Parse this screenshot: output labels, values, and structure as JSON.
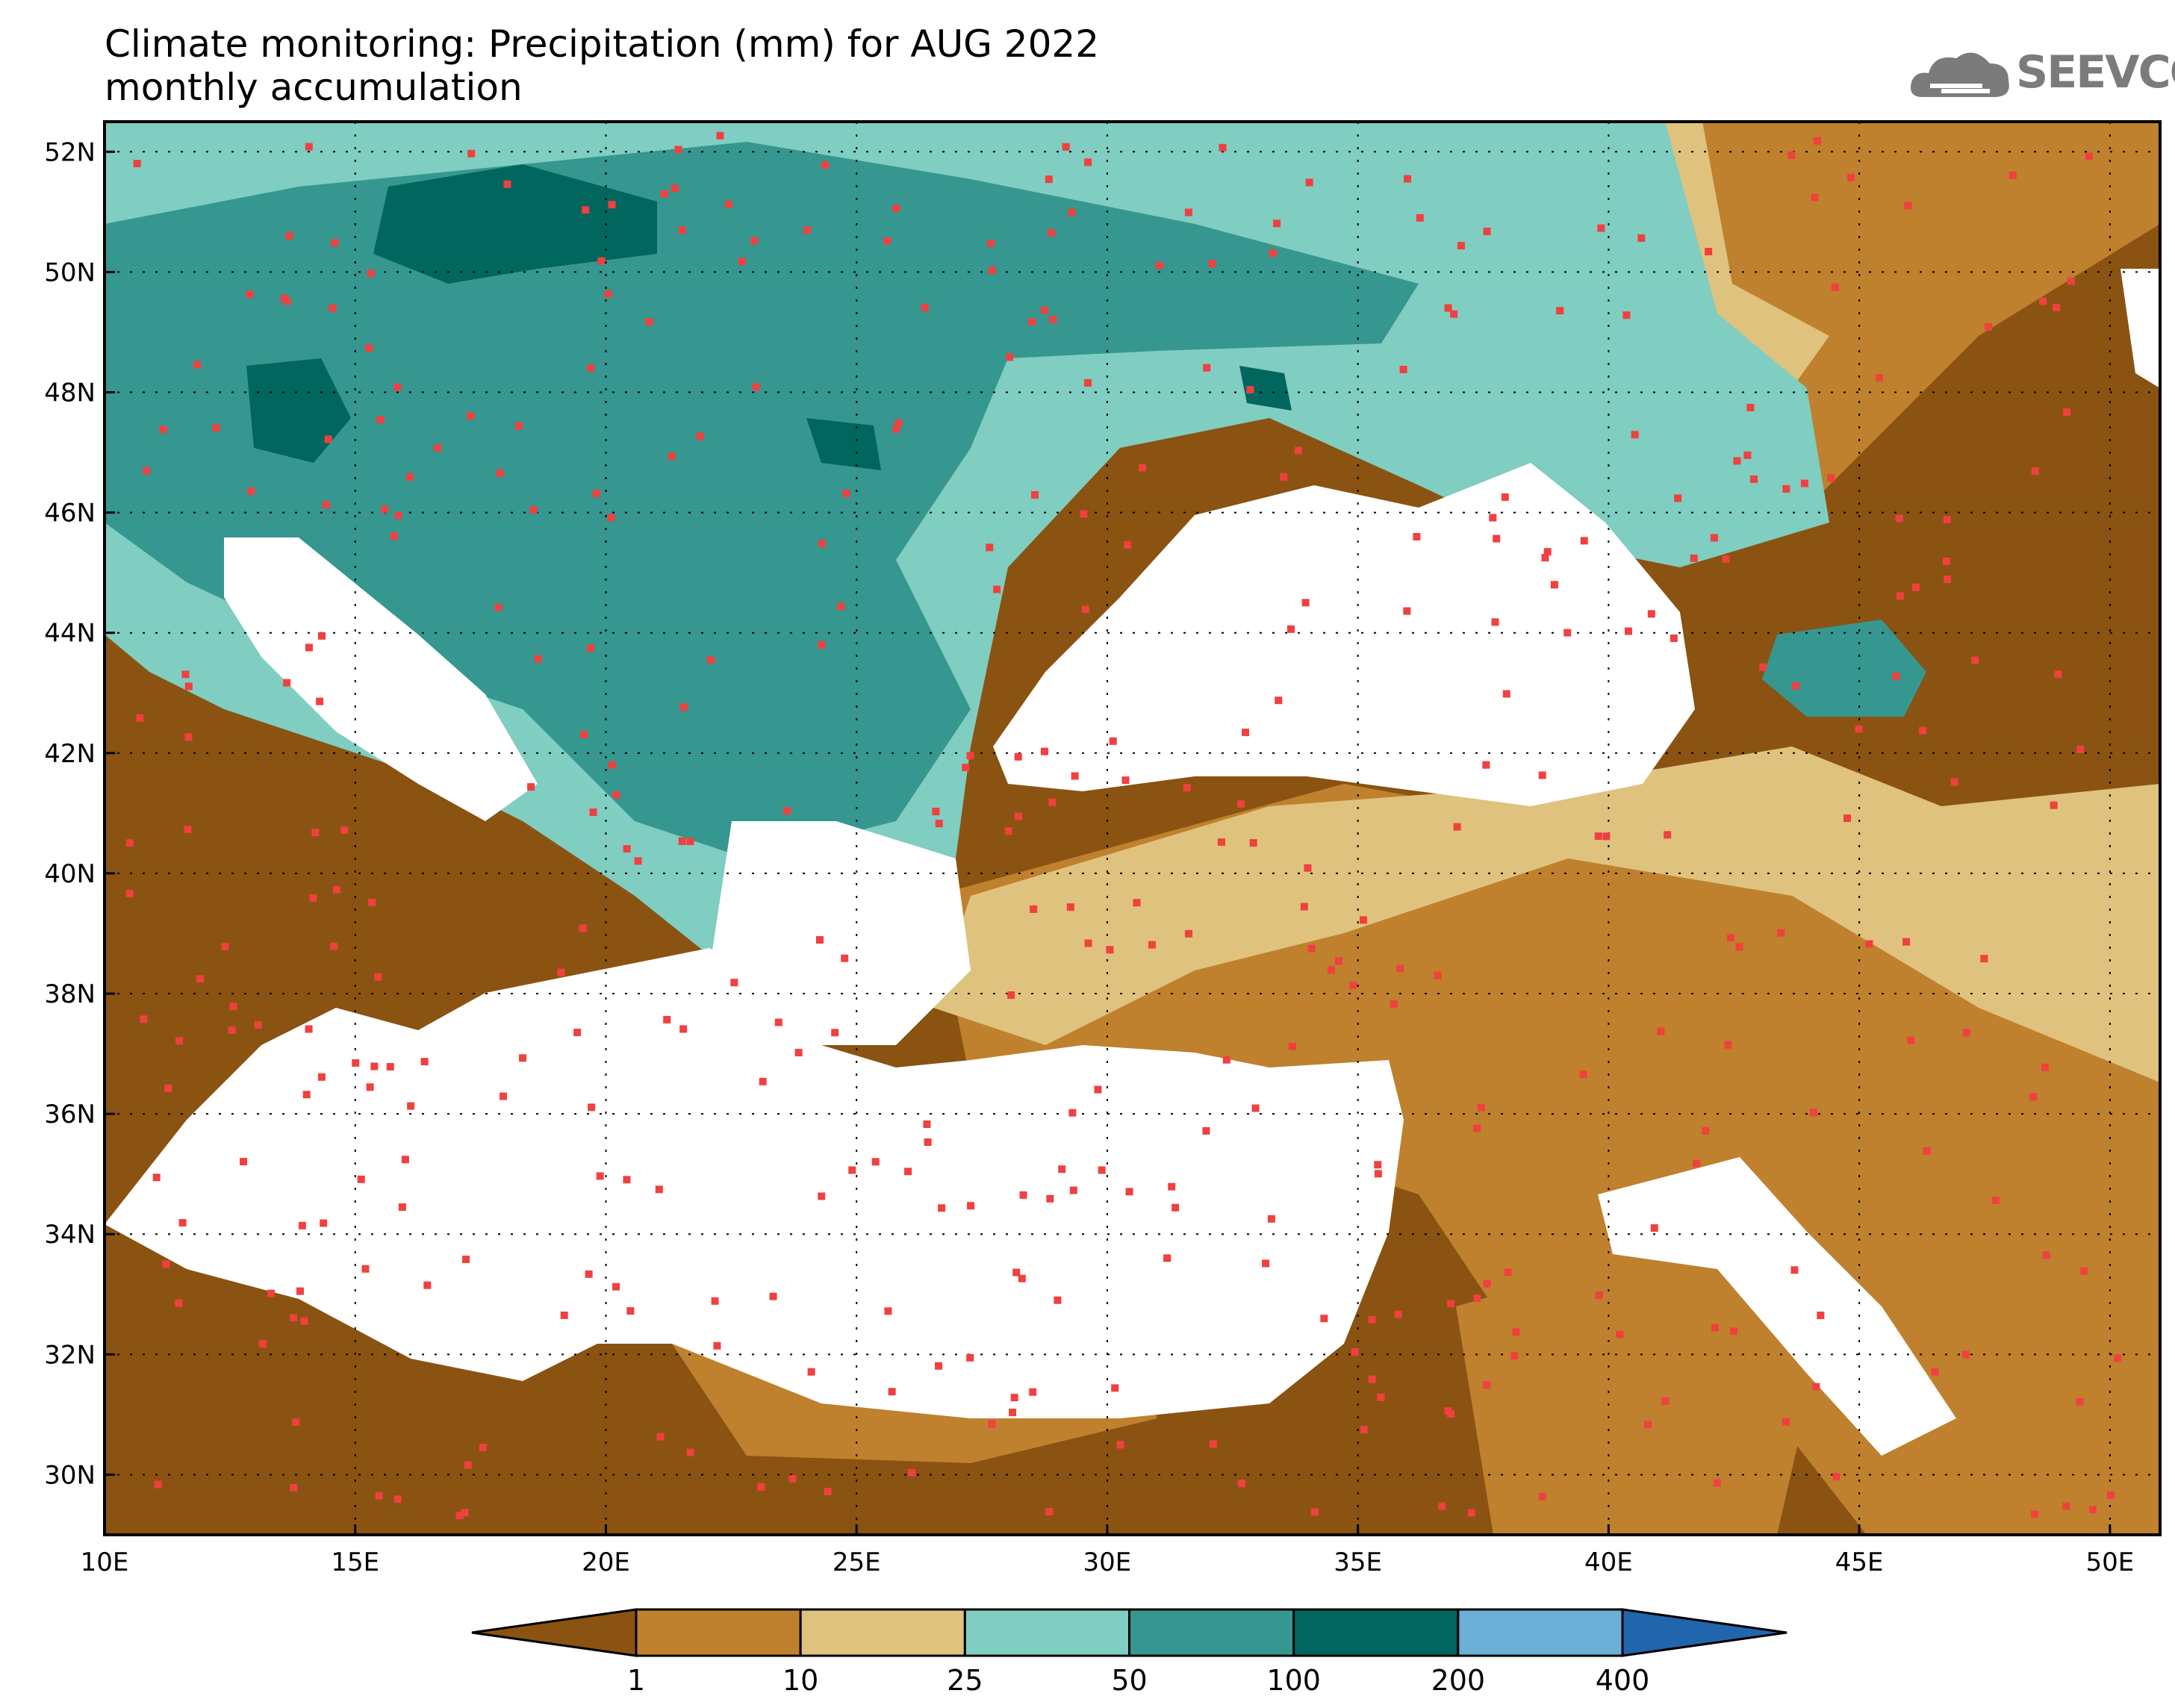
{
  "title": {
    "line1": "Climate monitoring: Precipitation (mm) for AUG 2022",
    "line2": "monthly accumulation"
  },
  "logo": {
    "text": "SEEVCCC",
    "icon": "cloud-logo-icon",
    "color": "#7b7b7b"
  },
  "map": {
    "lon_range": [
      10,
      51
    ],
    "lat_range": [
      29,
      52.5
    ],
    "lon_ticks": [
      "10E",
      "15E",
      "20E",
      "25E",
      "30E",
      "35E",
      "40E",
      "45E",
      "50E"
    ],
    "lat_ticks": [
      "30N",
      "32N",
      "34N",
      "36N",
      "38N",
      "40N",
      "42N",
      "44N",
      "46N",
      "48N",
      "50N",
      "52N"
    ],
    "grid": "dotted",
    "sea_color": "#ffffff",
    "station_marker_color": "#f04040"
  },
  "colorbar": {
    "bins": [
      {
        "color": "#8a5311"
      },
      {
        "color": "#bf812d"
      },
      {
        "color": "#dfc27d"
      },
      {
        "color": "#80cdc1"
      },
      {
        "color": "#35978f"
      },
      {
        "color": "#01665e"
      },
      {
        "color": "#6baed6"
      },
      {
        "color": "#2166ac"
      }
    ],
    "labels": [
      "1",
      "10",
      "25",
      "50",
      "100",
      "200",
      "400"
    ]
  }
}
